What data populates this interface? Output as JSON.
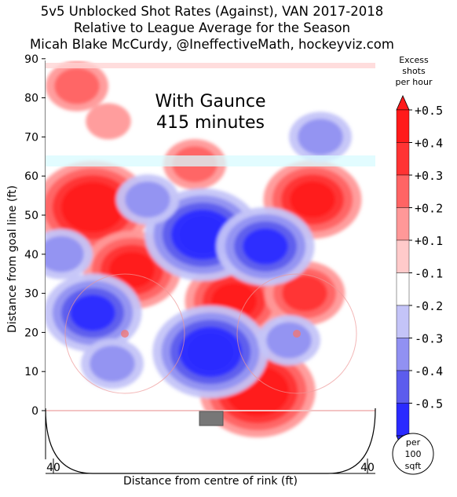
{
  "header": {
    "line1": "5v5 Unblocked Shot Rates (Against), VAN 2017-2018",
    "line2": "Relative to League Average for the Season",
    "line3": "Micah Blake McCurdy, @IneffectiveMath, hockeyviz.com"
  },
  "overlay": {
    "line1": "With Gaunce",
    "line2": "415 minutes"
  },
  "colorbar": {
    "title_line1": "Excess",
    "title_line2": "shots",
    "title_line3": "per hour",
    "unit_line1": "per",
    "unit_line2": "100",
    "unit_line3": "sqft",
    "levels": [
      {
        "label": "+0.5",
        "color": "#ff1a1a"
      },
      {
        "label": "+0.4",
        "color": "#ff3333"
      },
      {
        "label": "+0.3",
        "color": "#ff6464"
      },
      {
        "label": "+0.2",
        "color": "#ff9898"
      },
      {
        "label": "+0.1",
        "color": "#ffcaca"
      },
      {
        "label": "-0.1",
        "color": "#ffffff"
      },
      {
        "label": "-0.2",
        "color": "#c4c4f8"
      },
      {
        "label": "-0.3",
        "color": "#9191f2"
      },
      {
        "label": "-0.4",
        "color": "#5c5ced"
      },
      {
        "label": "-0.5",
        "color": "#2a2aff"
      }
    ]
  },
  "chart_data": {
    "type": "heatmap",
    "title": "5v5 Unblocked Shot Rates (Against), VAN 2017-2018",
    "subtitle": "Relative to League Average for the Season",
    "xlabel": "Distance from centre of rink (ft)",
    "ylabel": "Distance from goal line (ft)",
    "xlim": [
      42,
      -42
    ],
    "ylim": [
      -10,
      90
    ],
    "x_ticks": [
      40,
      30,
      20,
      10,
      0,
      10,
      20,
      30,
      40
    ],
    "x_tick_values": [
      40,
      30,
      20,
      10,
      0,
      -10,
      -20,
      -30,
      -40
    ],
    "y_ticks": [
      0,
      10,
      20,
      30,
      40,
      50,
      60,
      70,
      80,
      90
    ],
    "levels": [
      -0.5,
      -0.4,
      -0.3,
      -0.2,
      -0.1,
      0.1,
      0.2,
      0.3,
      0.4,
      0.5
    ],
    "regions": [
      {
        "x": 30,
        "y": 52,
        "peak": 0.45
      },
      {
        "x": 20,
        "y": 36,
        "peak": 0.4
      },
      {
        "x": -12,
        "y": 5,
        "peak": 0.45
      },
      {
        "x": -6,
        "y": 28,
        "peak": 0.35
      },
      {
        "x": -24,
        "y": 30,
        "peak": 0.3
      },
      {
        "x": -26,
        "y": 54,
        "peak": 0.4
      },
      {
        "x": 34,
        "y": 83,
        "peak": 0.2
      },
      {
        "x": 26,
        "y": 74,
        "peak": 0.1
      },
      {
        "x": 4,
        "y": 63,
        "peak": 0.15
      },
      {
        "x": 2,
        "y": 45,
        "peak": -0.5
      },
      {
        "x": -14,
        "y": 42,
        "peak": -0.4
      },
      {
        "x": 30,
        "y": 25,
        "peak": -0.35
      },
      {
        "x": 0,
        "y": 15,
        "peak": -0.45
      },
      {
        "x": -28,
        "y": 70,
        "peak": -0.2
      },
      {
        "x": 25,
        "y": 12,
        "peak": -0.2
      },
      {
        "x": 38,
        "y": 40,
        "peak": -0.2
      },
      {
        "x": 16,
        "y": 54,
        "peak": -0.15
      },
      {
        "x": -20,
        "y": 18,
        "peak": -0.15
      }
    ]
  }
}
